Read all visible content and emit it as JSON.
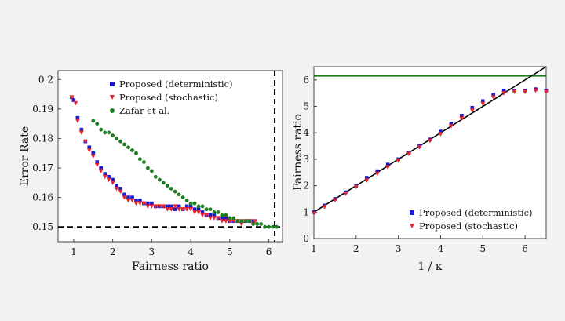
{
  "chart_data": [
    {
      "type": "scatter",
      "xlabel": "Fairness ratio",
      "ylabel": "Error Rate",
      "xlim": [
        0.6,
        6.35
      ],
      "ylim": [
        0.145,
        0.203
      ],
      "xticks": [
        "1",
        "2",
        "3",
        "4",
        "5",
        "6"
      ],
      "yticks": [
        "0.15",
        "0.16",
        "0.17",
        "0.18",
        "0.19",
        "0.2"
      ],
      "legend_position": "top-right",
      "reference_lines": [
        {
          "orientation": "horizontal",
          "value": 0.15,
          "style": "dashed",
          "color": "#000000"
        },
        {
          "orientation": "vertical",
          "value": 6.15,
          "style": "dashed",
          "color": "#000000"
        }
      ],
      "series": [
        {
          "name": "Proposed (deterministic)",
          "color": "#1a1acc",
          "marker": "square",
          "points": [
            [
              0.95,
              0.194
            ],
            [
              1.0,
              0.193
            ],
            [
              1.1,
              0.187
            ],
            [
              1.2,
              0.183
            ],
            [
              1.3,
              0.179
            ],
            [
              1.4,
              0.177
            ],
            [
              1.5,
              0.175
            ],
            [
              1.6,
              0.172
            ],
            [
              1.7,
              0.17
            ],
            [
              1.8,
              0.168
            ],
            [
              1.9,
              0.167
            ],
            [
              2.0,
              0.166
            ],
            [
              2.1,
              0.164
            ],
            [
              2.2,
              0.163
            ],
            [
              2.3,
              0.161
            ],
            [
              2.4,
              0.16
            ],
            [
              2.5,
              0.16
            ],
            [
              2.6,
              0.159
            ],
            [
              2.7,
              0.159
            ],
            [
              2.8,
              0.158
            ],
            [
              2.9,
              0.158
            ],
            [
              3.0,
              0.158
            ],
            [
              3.1,
              0.157
            ],
            [
              3.2,
              0.157
            ],
            [
              3.3,
              0.157
            ],
            [
              3.4,
              0.157
            ],
            [
              3.5,
              0.157
            ],
            [
              3.6,
              0.156
            ],
            [
              3.7,
              0.157
            ],
            [
              3.8,
              0.156
            ],
            [
              3.9,
              0.157
            ],
            [
              4.0,
              0.157
            ],
            [
              4.1,
              0.156
            ],
            [
              4.2,
              0.156
            ],
            [
              4.3,
              0.155
            ],
            [
              4.4,
              0.154
            ],
            [
              4.5,
              0.154
            ],
            [
              4.6,
              0.154
            ],
            [
              4.7,
              0.153
            ],
            [
              4.8,
              0.153
            ],
            [
              4.9,
              0.153
            ],
            [
              5.0,
              0.152
            ],
            [
              5.1,
              0.152
            ],
            [
              5.2,
              0.152
            ],
            [
              5.3,
              0.152
            ],
            [
              5.4,
              0.152
            ],
            [
              5.5,
              0.152
            ],
            [
              5.6,
              0.152
            ]
          ]
        },
        {
          "name": "Proposed (stochastic)",
          "color": "#e8262d",
          "marker": "triangle-down",
          "points": [
            [
              0.95,
              0.194
            ],
            [
              1.05,
              0.192
            ],
            [
              1.1,
              0.186
            ],
            [
              1.2,
              0.182
            ],
            [
              1.3,
              0.179
            ],
            [
              1.4,
              0.176
            ],
            [
              1.5,
              0.174
            ],
            [
              1.6,
              0.171
            ],
            [
              1.7,
              0.169
            ],
            [
              1.8,
              0.167
            ],
            [
              1.9,
              0.166
            ],
            [
              2.0,
              0.165
            ],
            [
              2.1,
              0.163
            ],
            [
              2.2,
              0.162
            ],
            [
              2.3,
              0.16
            ],
            [
              2.4,
              0.159
            ],
            [
              2.5,
              0.159
            ],
            [
              2.6,
              0.158
            ],
            [
              2.7,
              0.158
            ],
            [
              2.8,
              0.158
            ],
            [
              2.9,
              0.157
            ],
            [
              3.0,
              0.157
            ],
            [
              3.1,
              0.157
            ],
            [
              3.2,
              0.157
            ],
            [
              3.3,
              0.157
            ],
            [
              3.4,
              0.156
            ],
            [
              3.5,
              0.156
            ],
            [
              3.6,
              0.157
            ],
            [
              3.7,
              0.156
            ],
            [
              3.8,
              0.156
            ],
            [
              3.9,
              0.156
            ],
            [
              4.0,
              0.156
            ],
            [
              4.1,
              0.155
            ],
            [
              4.2,
              0.155
            ],
            [
              4.3,
              0.154
            ],
            [
              4.4,
              0.154
            ],
            [
              4.5,
              0.153
            ],
            [
              4.6,
              0.153
            ],
            [
              4.7,
              0.153
            ],
            [
              4.8,
              0.152
            ],
            [
              4.9,
              0.152
            ],
            [
              5.0,
              0.152
            ],
            [
              5.1,
              0.152
            ],
            [
              5.2,
              0.152
            ],
            [
              5.3,
              0.151
            ],
            [
              5.4,
              0.152
            ],
            [
              5.5,
              0.152
            ],
            [
              5.6,
              0.151
            ],
            [
              5.65,
              0.152
            ]
          ]
        },
        {
          "name": "Zafar et al.",
          "color": "#1e7d1e",
          "marker": "circle",
          "points": [
            [
              1.5,
              0.186
            ],
            [
              1.6,
              0.185
            ],
            [
              1.7,
              0.183
            ],
            [
              1.8,
              0.182
            ],
            [
              1.9,
              0.182
            ],
            [
              2.0,
              0.181
            ],
            [
              2.1,
              0.18
            ],
            [
              2.2,
              0.179
            ],
            [
              2.3,
              0.178
            ],
            [
              2.4,
              0.177
            ],
            [
              2.5,
              0.176
            ],
            [
              2.6,
              0.175
            ],
            [
              2.7,
              0.173
            ],
            [
              2.8,
              0.172
            ],
            [
              2.9,
              0.17
            ],
            [
              3.0,
              0.169
            ],
            [
              3.1,
              0.167
            ],
            [
              3.2,
              0.166
            ],
            [
              3.3,
              0.165
            ],
            [
              3.4,
              0.164
            ],
            [
              3.5,
              0.163
            ],
            [
              3.6,
              0.162
            ],
            [
              3.7,
              0.161
            ],
            [
              3.8,
              0.16
            ],
            [
              3.9,
              0.159
            ],
            [
              4.0,
              0.158
            ],
            [
              4.1,
              0.158
            ],
            [
              4.2,
              0.157
            ],
            [
              4.3,
              0.157
            ],
            [
              4.4,
              0.156
            ],
            [
              4.5,
              0.156
            ],
            [
              4.6,
              0.155
            ],
            [
              4.7,
              0.155
            ],
            [
              4.8,
              0.154
            ],
            [
              4.9,
              0.154
            ],
            [
              5.0,
              0.153
            ],
            [
              5.1,
              0.153
            ],
            [
              5.2,
              0.152
            ],
            [
              5.3,
              0.152
            ],
            [
              5.4,
              0.152
            ],
            [
              5.5,
              0.152
            ],
            [
              5.6,
              0.151
            ],
            [
              5.7,
              0.151
            ],
            [
              5.8,
              0.151
            ],
            [
              5.9,
              0.15
            ],
            [
              6.0,
              0.15
            ],
            [
              6.1,
              0.15
            ],
            [
              6.2,
              0.15
            ]
          ]
        }
      ]
    },
    {
      "type": "scatter",
      "xlabel": "1 / κ",
      "ylabel": "Fairness ratio",
      "xlim": [
        1,
        6.5
      ],
      "ylim": [
        0,
        6.5
      ],
      "xticks": [
        "1",
        "2",
        "3",
        "4",
        "5",
        "6"
      ],
      "yticks": [
        "0",
        "1",
        "2",
        "3",
        "4",
        "5",
        "6"
      ],
      "legend_position": "bottom-right",
      "reference_lines": [
        {
          "orientation": "horizontal",
          "value": 6.15,
          "style": "solid",
          "color": "#1e7d1e"
        },
        {
          "orientation": "diagonal",
          "from": [
            1,
            1
          ],
          "to": [
            6.5,
            6.5
          ],
          "style": "solid",
          "color": "#000000"
        }
      ],
      "series": [
        {
          "name": "Proposed (deterministic)",
          "color": "#1a1acc",
          "marker": "square",
          "points": [
            [
              1.0,
              1.0
            ],
            [
              1.25,
              1.25
            ],
            [
              1.5,
              1.5
            ],
            [
              1.75,
              1.75
            ],
            [
              2.0,
              2.0
            ],
            [
              2.25,
              2.3
            ],
            [
              2.5,
              2.55
            ],
            [
              2.75,
              2.8
            ],
            [
              3.0,
              3.0
            ],
            [
              3.25,
              3.25
            ],
            [
              3.5,
              3.5
            ],
            [
              3.75,
              3.75
            ],
            [
              4.0,
              4.05
            ],
            [
              4.25,
              4.35
            ],
            [
              4.5,
              4.65
            ],
            [
              4.75,
              4.95
            ],
            [
              5.0,
              5.2
            ],
            [
              5.25,
              5.45
            ],
            [
              5.5,
              5.6
            ],
            [
              5.75,
              5.6
            ],
            [
              6.0,
              5.6
            ],
            [
              6.25,
              5.65
            ],
            [
              6.5,
              5.6
            ]
          ]
        },
        {
          "name": "Proposed (stochastic)",
          "color": "#e8262d",
          "marker": "triangle-down",
          "points": [
            [
              1.0,
              0.95
            ],
            [
              1.25,
              1.2
            ],
            [
              1.5,
              1.45
            ],
            [
              1.75,
              1.7
            ],
            [
              2.0,
              1.95
            ],
            [
              2.25,
              2.2
            ],
            [
              2.5,
              2.45
            ],
            [
              2.75,
              2.7
            ],
            [
              3.0,
              2.95
            ],
            [
              3.25,
              3.2
            ],
            [
              3.5,
              3.45
            ],
            [
              3.75,
              3.7
            ],
            [
              4.0,
              3.95
            ],
            [
              4.25,
              4.25
            ],
            [
              4.5,
              4.55
            ],
            [
              4.75,
              4.85
            ],
            [
              5.0,
              5.1
            ],
            [
              5.25,
              5.35
            ],
            [
              5.5,
              5.5
            ],
            [
              5.75,
              5.55
            ],
            [
              6.0,
              5.55
            ],
            [
              6.25,
              5.6
            ],
            [
              6.5,
              5.55
            ]
          ]
        }
      ]
    }
  ]
}
